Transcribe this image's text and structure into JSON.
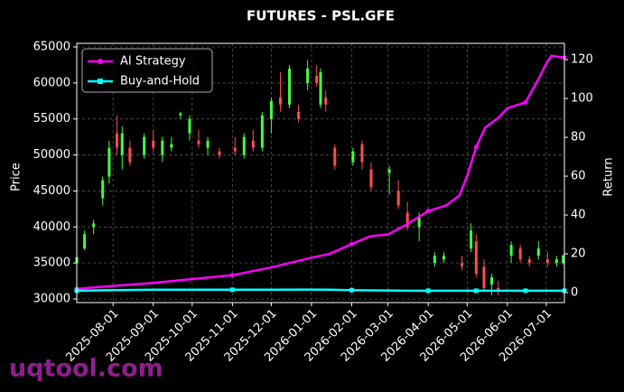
{
  "chart_data": {
    "type": "candlestick",
    "title": "FUTURES - PSL.GFE",
    "ylabel": "Price",
    "y2label": "Return",
    "watermark": "uqtool.com",
    "grid": true,
    "legend": "upper left",
    "up_color": "#44ff44",
    "down_color": "#ff4d4d",
    "xlim": [
      "2025-07-04",
      "2026-07-15"
    ],
    "xticks": [
      "2025-08-01",
      "2025-09-01",
      "2025-10-01",
      "2025-11-01",
      "2025-12-01",
      "2026-01-01",
      "2026-02-01",
      "2026-03-01",
      "2026-04-01",
      "2026-05-01",
      "2026-06-01",
      "2026-07-01"
    ],
    "ylim": [
      29500,
      65500
    ],
    "yticks": [
      30000,
      35000,
      40000,
      45000,
      50000,
      55000,
      60000,
      65000
    ],
    "y2lim": [
      -5.1,
      128.4
    ],
    "y2ticks": [
      0,
      20,
      40,
      60,
      80,
      100,
      120
    ],
    "candles": {
      "x": [
        "2025-07-04",
        "2025-07-10",
        "2025-07-17",
        "2025-07-24",
        "2025-07-29",
        "2025-08-04",
        "2025-08-08",
        "2025-08-14",
        "2025-08-25",
        "2025-09-01",
        "2025-09-08",
        "2025-09-15",
        "2025-09-22",
        "2025-09-29",
        "2025-10-06",
        "2025-10-13",
        "2025-10-22",
        "2025-11-03",
        "2025-11-10",
        "2025-11-17",
        "2025-11-24",
        "2025-12-01",
        "2025-12-08",
        "2025-12-15",
        "2025-12-22",
        "2025-12-29",
        "2026-01-05",
        "2026-01-08",
        "2026-01-12",
        "2026-01-19",
        "2026-02-02",
        "2026-02-09",
        "2026-02-16",
        "2026-03-02",
        "2026-03-09",
        "2026-03-16",
        "2026-03-25",
        "2026-04-06",
        "2026-04-13",
        "2026-04-27",
        "2026-05-04",
        "2026-05-08",
        "2026-05-14",
        "2026-05-20",
        "2026-05-25",
        "2026-06-04",
        "2026-06-11",
        "2026-06-18",
        "2026-06-25",
        "2026-07-02",
        "2026-07-09",
        "2026-07-14"
      ],
      "open": [
        35000,
        37000,
        40000,
        44000,
        47000,
        53000,
        50000,
        51000,
        50000,
        52000,
        50000,
        51000,
        55500,
        53000,
        52000,
        51000,
        50500,
        51000,
        50000,
        52000,
        51000,
        55000,
        58000,
        57000,
        56000,
        60000,
        61000,
        57000,
        58000,
        51000,
        49000,
        51500,
        48000,
        47500,
        45000,
        42000,
        40000,
        35000,
        35500,
        35000,
        37000,
        38000,
        34500,
        32000,
        31500,
        36000,
        37000,
        35500,
        36000,
        35500,
        35000,
        35000
      ],
      "high": [
        36000,
        39500,
        41000,
        47000,
        52000,
        55500,
        54000,
        52000,
        53000,
        53500,
        52500,
        52500,
        56000,
        55500,
        53500,
        52500,
        51000,
        52500,
        53000,
        53500,
        56000,
        58000,
        61500,
        62500,
        57000,
        63200,
        62500,
        62000,
        59000,
        51500,
        51000,
        52000,
        49000,
        48500,
        46500,
        43500,
        42000,
        36500,
        36500,
        36000,
        40500,
        39000,
        35500,
        33500,
        32500,
        38000,
        37500,
        36000,
        38000,
        36500,
        36000,
        36200
      ],
      "low": [
        34500,
        36800,
        39000,
        43000,
        46000,
        50000,
        48000,
        48500,
        49500,
        50500,
        49000,
        50500,
        55000,
        52000,
        51000,
        50000,
        49500,
        50000,
        49500,
        50500,
        50500,
        53000,
        56000,
        56500,
        54500,
        59000,
        59500,
        56500,
        56000,
        48000,
        48500,
        48000,
        45000,
        44500,
        42500,
        39500,
        38000,
        34500,
        35000,
        34000,
        36500,
        33000,
        31000,
        30500,
        30500,
        35000,
        35000,
        34500,
        35500,
        34500,
        34500,
        34800
      ],
      "close": [
        35800,
        39000,
        40500,
        46500,
        51000,
        51000,
        53000,
        49000,
        52500,
        51000,
        52000,
        51500,
        55800,
        55000,
        51500,
        52000,
        50000,
        50500,
        52500,
        51000,
        55500,
        57500,
        57000,
        62000,
        55000,
        62000,
        60000,
        61500,
        57000,
        48500,
        50500,
        49000,
        45500,
        48000,
        43000,
        40000,
        41500,
        36000,
        36000,
        34500,
        39500,
        33500,
        31500,
        33000,
        31000,
        37500,
        35500,
        35000,
        37000,
        35000,
        35500,
        36000
      ]
    },
    "lines": [
      {
        "name": "AI Strategy",
        "color": "#ff00ff",
        "marker": "circle",
        "axis": "y2",
        "x": [
          "2025-07-04",
          "2025-08-01",
          "2025-09-01",
          "2025-10-01",
          "2025-11-01",
          "2025-12-01",
          "2026-01-01",
          "2026-01-15",
          "2026-02-01",
          "2026-02-15",
          "2026-03-01",
          "2026-03-15",
          "2026-04-01",
          "2026-04-15",
          "2026-04-25",
          "2026-05-01",
          "2026-05-08",
          "2026-05-15",
          "2026-05-25",
          "2026-06-01",
          "2026-06-15",
          "2026-06-25",
          "2026-07-01",
          "2026-07-05",
          "2026-07-15"
        ],
        "values": [
          2,
          3.5,
          5,
          7,
          9,
          13,
          18,
          20,
          25,
          29,
          30,
          35,
          42,
          45,
          50,
          60,
          75,
          85,
          90,
          95,
          98,
          110,
          118,
          122,
          121
        ]
      },
      {
        "name": "Buy-and-Hold",
        "color": "#00ffff",
        "marker": "square",
        "axis": "y2",
        "x": [
          "2025-07-04",
          "2025-08-01",
          "2025-09-01",
          "2025-10-01",
          "2025-11-01",
          "2025-12-01",
          "2026-01-01",
          "2026-01-15",
          "2026-02-01",
          "2026-02-15",
          "2026-03-01",
          "2026-03-15",
          "2026-04-01",
          "2026-04-15",
          "2026-04-25",
          "2026-05-01",
          "2026-05-08",
          "2026-05-15",
          "2026-05-25",
          "2026-06-01",
          "2026-06-15",
          "2026-06-25",
          "2026-07-01",
          "2026-07-05",
          "2026-07-15"
        ],
        "values": [
          1,
          1.3,
          1.5,
          1.5,
          1.5,
          1.5,
          1.6,
          1.5,
          1.3,
          1.2,
          1.1,
          1,
          1,
          1,
          1,
          1,
          1,
          1,
          1,
          1,
          1,
          1,
          1,
          1,
          1
        ]
      }
    ]
  }
}
